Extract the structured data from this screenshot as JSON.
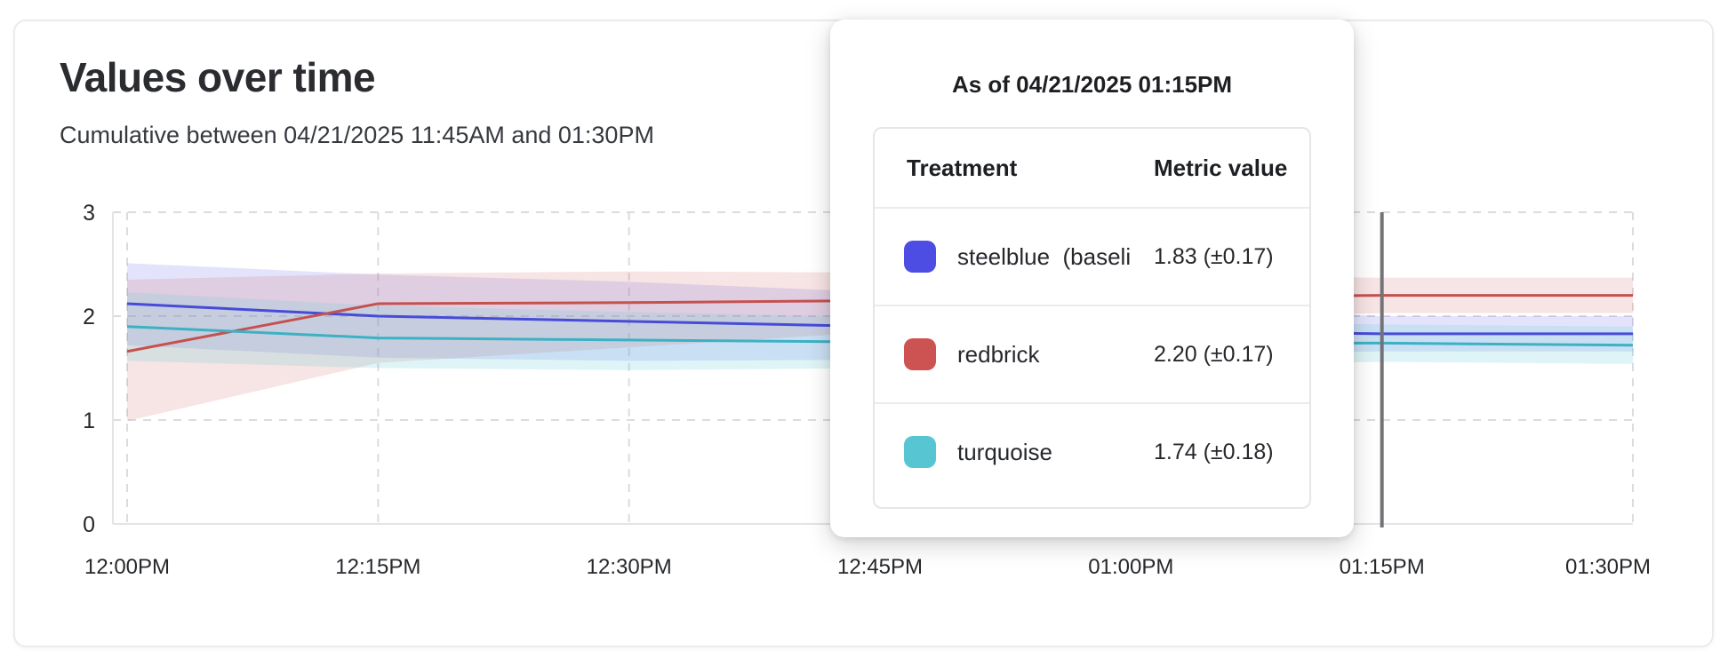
{
  "card": {
    "title": "Values over time",
    "subtitle": "Cumulative between 04/21/2025 11:45AM and 01:30PM"
  },
  "chart_data": {
    "type": "line",
    "title": "Values over time",
    "x_tick_labels": [
      "12:00PM",
      "12:15PM",
      "12:30PM",
      "12:45PM",
      "01:00PM",
      "01:15PM",
      "01:30PM"
    ],
    "y_tick_labels": [
      "0",
      "1",
      "2",
      "3"
    ],
    "ylim": [
      0,
      3
    ],
    "grid": "dashed",
    "legend_position": "none",
    "as_of_index": 5,
    "as_of_line_color": "#737377",
    "series": [
      {
        "name": "steelblue (baseline)",
        "line_color": "#474bd8",
        "band_color": "rgba(101,106,236,0.18)",
        "values": [
          2.12,
          2.0,
          1.95,
          1.9,
          1.86,
          1.83,
          1.83
        ],
        "band_lower": [
          1.72,
          1.6,
          1.57,
          1.58,
          1.62,
          1.66,
          1.66
        ],
        "band_upper": [
          2.51,
          2.4,
          2.33,
          2.23,
          2.1,
          2.0,
          2.0
        ]
      },
      {
        "name": "redbrick",
        "line_color": "#c5514f",
        "band_color": "rgba(205,95,95,0.17)",
        "values": [
          1.66,
          2.12,
          2.13,
          2.15,
          2.18,
          2.2,
          2.2
        ],
        "band_lower": [
          0.99,
          1.55,
          1.7,
          1.85,
          1.97,
          2.03,
          2.03
        ],
        "band_upper": [
          2.35,
          2.41,
          2.43,
          2.42,
          2.4,
          2.37,
          2.37
        ]
      },
      {
        "name": "turquoise",
        "line_color": "#3cb1c3",
        "band_color": "rgba(110,205,215,0.22)",
        "values": [
          1.9,
          1.79,
          1.77,
          1.75,
          1.74,
          1.74,
          1.72
        ],
        "band_lower": [
          1.57,
          1.5,
          1.48,
          1.5,
          1.53,
          1.56,
          1.54
        ],
        "band_upper": [
          2.23,
          2.1,
          2.04,
          1.99,
          1.95,
          1.92,
          1.9
        ]
      }
    ]
  },
  "tooltip": {
    "title": "As of 04/21/2025 01:15PM",
    "columns": [
      "Treatment",
      "Metric value"
    ],
    "rows": [
      {
        "swatch_color": "#4d4de3",
        "name": "steelblue  (baseli",
        "value": "1.83 (±0.17)"
      },
      {
        "swatch_color": "#cd5252",
        "name": "redbrick",
        "value": "2.20 (±0.17)"
      },
      {
        "swatch_color": "#57c5d2",
        "name": "turquoise",
        "value": "1.74 (±0.18)"
      }
    ]
  }
}
